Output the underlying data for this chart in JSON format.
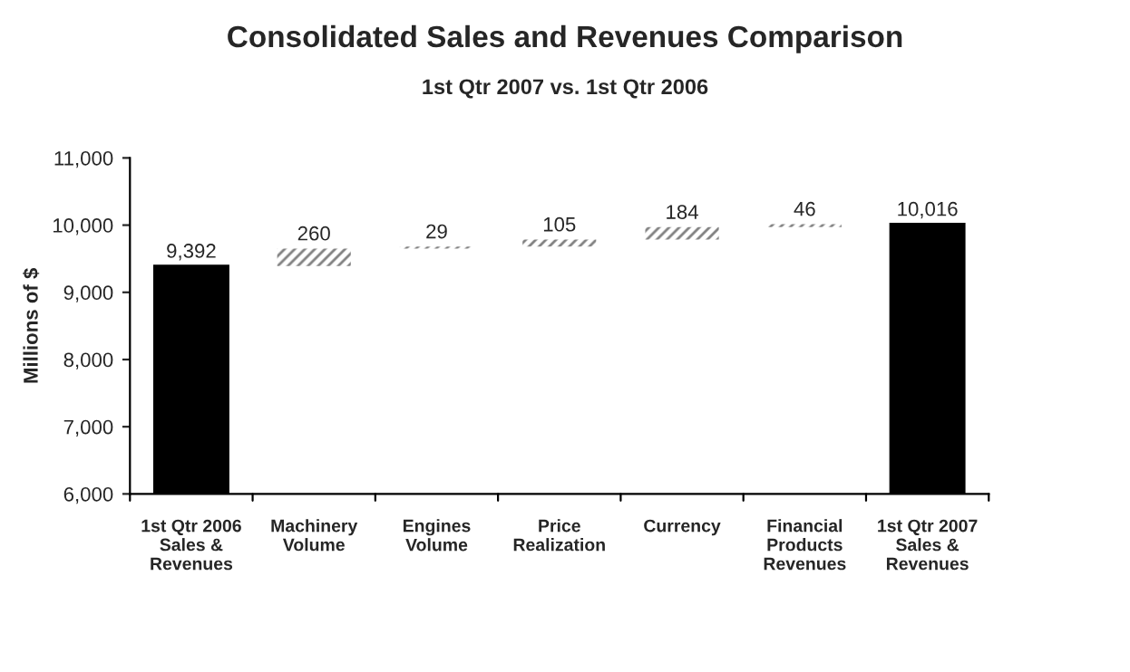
{
  "chart_data": {
    "type": "bar",
    "title": "Consolidated Sales and Revenues Comparison",
    "subtitle": "1st Qtr 2007 vs. 1st Qtr 2006",
    "ylabel": "Millions of $",
    "categories": [
      "1st Qtr 2006\nSales &\nRevenues",
      "Machinery\nVolume",
      "Engines\nVolume",
      "Price\nRealization",
      "Currency",
      "Financial\nProducts\nRevenues",
      "1st Qtr 2007\nSales &\nRevenues"
    ],
    "values": [
      9392,
      260,
      29,
      105,
      184,
      46,
      10016
    ],
    "base": [
      0,
      9392,
      9652,
      9681,
      9786,
      9970,
      0
    ],
    "colors": [
      "#000000",
      "#808080",
      "#808080",
      "#808080",
      "#808080",
      "#808080",
      "#000000"
    ],
    "ylim": [
      6000,
      11000
    ],
    "yticks": [
      {
        "value": 6000,
        "label": "6,000"
      },
      {
        "value": 7000,
        "label": "7,000"
      },
      {
        "value": 8000,
        "label": "8,000"
      },
      {
        "value": 9000,
        "label": "9,000"
      },
      {
        "value": 10000,
        "label": "10,000"
      },
      {
        "value": 11000,
        "label": "11,000"
      }
    ],
    "value_labels": [
      "9,392",
      "260",
      "29",
      "105",
      "184",
      "46",
      "10,016"
    ],
    "grid": false,
    "legend": false
  }
}
